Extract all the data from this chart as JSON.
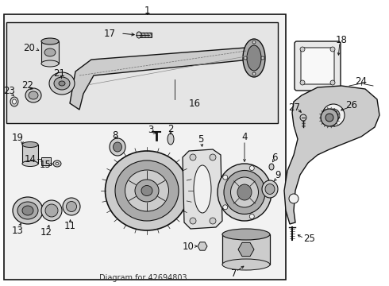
{
  "bg_color": "#ffffff",
  "fig_bg": "#f0f0f0",
  "lc": "#111111",
  "gray1": "#cccccc",
  "gray2": "#aaaaaa",
  "gray3": "#888888",
  "box_bg": "#e8e8e8",
  "inner_bg": "#dcdcdc",
  "part_text": "Diagram for 42694803",
  "label_fs": 8.5,
  "small_fs": 7.0
}
